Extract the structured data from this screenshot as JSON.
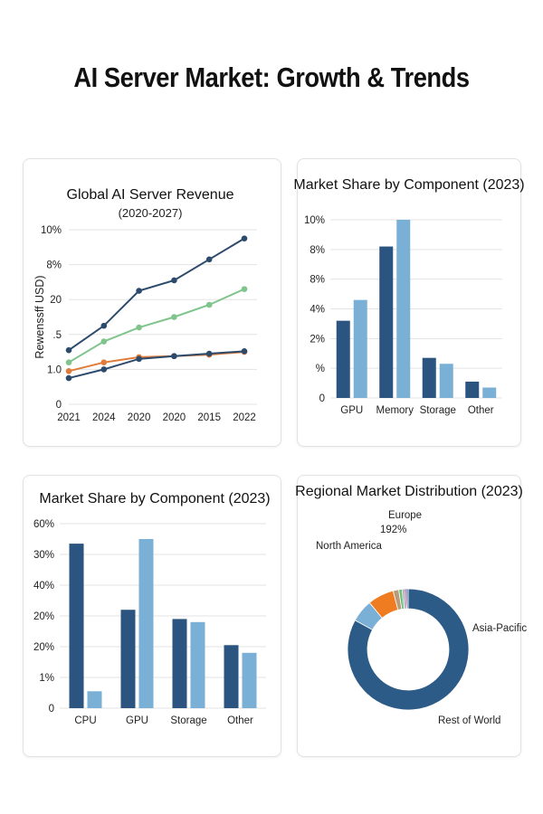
{
  "page_title": "AI Server Market: Growth & Trends",
  "chart_data": [
    {
      "id": "revenue",
      "type": "line",
      "title": "Global AI Server Revenue",
      "subtitle": "(2020-2027)",
      "xlabel": "",
      "ylabel": "Rewenssff USD)",
      "categories": [
        "2021",
        "2024",
        "2020",
        "2020",
        "2015",
        "2022"
      ],
      "ytick_labels": [
        "0",
        "1.0",
        ".5",
        "20",
        "8%",
        "10%"
      ],
      "ylim": [
        0,
        5
      ],
      "grid": true,
      "series": [
        {
          "name": "series-1",
          "color": "#2c4a6b",
          "values": [
            1.55,
            2.25,
            3.25,
            3.55,
            4.15,
            4.75
          ]
        },
        {
          "name": "series-2",
          "color": "#7fc48c",
          "values": [
            1.2,
            1.8,
            2.2,
            2.5,
            2.85,
            3.3
          ]
        },
        {
          "name": "series-3",
          "color": "#e07b39",
          "values": [
            0.95,
            1.2,
            1.35,
            1.38,
            1.42,
            1.5
          ]
        },
        {
          "name": "series-4",
          "color": "#2c4a6b",
          "values": [
            0.75,
            1.0,
            1.3,
            1.38,
            1.45,
            1.52
          ]
        }
      ]
    },
    {
      "id": "component-a",
      "type": "bar",
      "title": "Market Share by Component (2023)",
      "categories": [
        "GPU",
        "Memory",
        "Storage",
        "Other"
      ],
      "ytick_labels": [
        "0",
        "%",
        "2%",
        "4%",
        "8%",
        "8%",
        "10%"
      ],
      "ylim": [
        0,
        6
      ],
      "grid": true,
      "series": [
        {
          "name": "dark",
          "color": "#2b5580",
          "values": [
            2.6,
            5.1,
            1.35,
            0.55
          ]
        },
        {
          "name": "light",
          "color": "#7aafd6",
          "values": [
            3.3,
            6.0,
            1.15,
            0.35
          ]
        }
      ]
    },
    {
      "id": "component-b",
      "type": "bar",
      "title": "Market Share by Component (2023)",
      "categories": [
        "CPU",
        "GPU",
        "Storage",
        "Other"
      ],
      "ytick_labels": [
        "0",
        "1%",
        "20%",
        "20%",
        "40%",
        "30%",
        "60%"
      ],
      "ylim": [
        0,
        6
      ],
      "grid": true,
      "series": [
        {
          "name": "dark",
          "color": "#2b5580",
          "values": [
            5.35,
            3.2,
            2.9,
            2.05
          ]
        },
        {
          "name": "light",
          "color": "#7aafd6",
          "values": [
            0.55,
            5.5,
            2.8,
            1.8
          ]
        }
      ]
    },
    {
      "id": "regional",
      "type": "pie",
      "donut": true,
      "title": "Regional Market Distribution (2023)",
      "labels": [
        "Asia-Pacific",
        "Rest of World",
        "North America",
        "Europe"
      ],
      "annotation": "192%",
      "slices": [
        {
          "name": "Asia-Pacific",
          "value": 83.0,
          "color": "#2c5b87"
        },
        {
          "name": "Light Blue",
          "value": 6.0,
          "color": "#7aafd6"
        },
        {
          "name": "North America",
          "value": 7.0,
          "color": "#f07c22"
        },
        {
          "name": "Tan",
          "value": 1.5,
          "color": "#b89b7a"
        },
        {
          "name": "Green",
          "value": 0.9,
          "color": "#6cbf7c"
        },
        {
          "name": "Gray",
          "value": 0.6,
          "color": "#9aa5ad"
        },
        {
          "name": "Pink",
          "value": 0.5,
          "color": "#c4447a"
        },
        {
          "name": "Blue",
          "value": 0.5,
          "color": "#3b6fb0"
        }
      ]
    }
  ]
}
